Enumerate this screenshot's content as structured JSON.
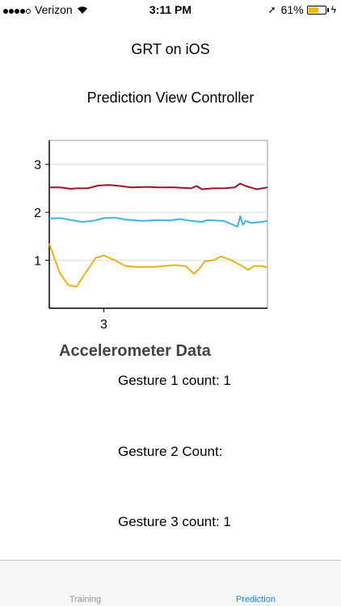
{
  "status_bar": {
    "carrier": "Verizon",
    "time": "3:11 PM",
    "battery": "61%",
    "battery_level": 0.61,
    "signal_bars": 4,
    "battery_color": "#f2b705"
  },
  "nav": {
    "title": "GRT on iOS",
    "subtitle": "Prediction View Controller"
  },
  "chart_data": {
    "type": "line",
    "title": "",
    "xlabel": "",
    "ylabel": "",
    "xlim": [
      2,
      6
    ],
    "ylim": [
      0,
      3.5
    ],
    "x_ticks": [
      3
    ],
    "y_ticks": [
      1,
      2,
      3
    ],
    "grid": true,
    "series": [
      {
        "color": "#a01226",
        "x": [
          2.0,
          2.2,
          2.4,
          2.5,
          2.7,
          2.9,
          3.1,
          3.3,
          3.5,
          3.8,
          4.0,
          4.3,
          4.6,
          4.7,
          4.8,
          5.0,
          5.2,
          5.4,
          5.5,
          5.6,
          5.8,
          6.0
        ],
        "y": [
          2.52,
          2.52,
          2.49,
          2.5,
          2.5,
          2.56,
          2.57,
          2.55,
          2.52,
          2.53,
          2.52,
          2.52,
          2.5,
          2.55,
          2.48,
          2.5,
          2.5,
          2.52,
          2.6,
          2.55,
          2.48,
          2.52
        ]
      },
      {
        "color": "#3cb4e8",
        "x": [
          2.0,
          2.2,
          2.4,
          2.6,
          2.8,
          3.0,
          3.2,
          3.4,
          3.7,
          4.0,
          4.2,
          4.4,
          4.6,
          4.8,
          4.9,
          5.2,
          5.35,
          5.45,
          5.5,
          5.55,
          5.6,
          5.7,
          5.9,
          6.0
        ],
        "y": [
          1.87,
          1.88,
          1.84,
          1.8,
          1.82,
          1.88,
          1.89,
          1.85,
          1.82,
          1.84,
          1.83,
          1.86,
          1.82,
          1.8,
          1.84,
          1.82,
          1.75,
          1.7,
          1.92,
          1.74,
          1.82,
          1.78,
          1.8,
          1.82
        ]
      },
      {
        "color": "#eab315",
        "x": [
          2.0,
          2.1,
          2.2,
          2.35,
          2.5,
          2.7,
          2.85,
          3.0,
          3.2,
          3.4,
          3.6,
          3.9,
          4.1,
          4.3,
          4.5,
          4.65,
          4.75,
          4.85,
          5.0,
          5.15,
          5.3,
          5.5,
          5.65,
          5.75,
          5.9,
          6.0
        ],
        "y": [
          1.35,
          1.02,
          0.72,
          0.48,
          0.45,
          0.8,
          1.05,
          1.1,
          1.0,
          0.88,
          0.86,
          0.86,
          0.88,
          0.9,
          0.88,
          0.72,
          0.82,
          0.98,
          1.0,
          1.08,
          1.02,
          0.9,
          0.8,
          0.88,
          0.88,
          0.85
        ]
      }
    ]
  },
  "labels": {
    "accelerometer": "Accelerometer Data",
    "gesture1": "Gesture 1 count: 1",
    "gesture2": "Gesture 2 Count:",
    "gesture3": "Gesture 3 count: 1"
  },
  "tabs": [
    {
      "label": "Training",
      "selected": false
    },
    {
      "label": "Prediction",
      "selected": true
    }
  ]
}
